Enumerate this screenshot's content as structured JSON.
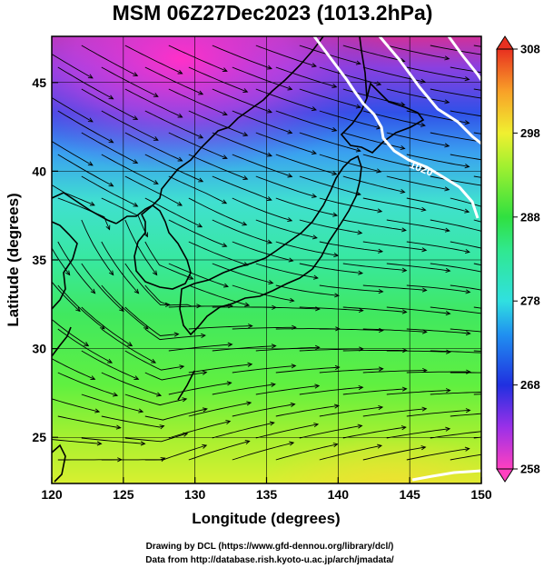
{
  "chart_data": {
    "type": "heatmap",
    "title": "MSM 06Z27Dec2023 (1013.2hPa)",
    "xlabel": "Longitude (degrees)",
    "ylabel": "Latitude  (degrees)",
    "xlim": [
      120,
      150
    ],
    "ylim": [
      22.4,
      47.6
    ],
    "xticks": [
      "120",
      "125",
      "130",
      "135",
      "140",
      "145",
      "150"
    ],
    "yticks": [
      "25",
      "30",
      "35",
      "40",
      "45"
    ],
    "xtick_values": [
      120,
      125,
      130,
      135,
      140,
      145,
      150
    ],
    "ytick_values": [
      25,
      30,
      35,
      40,
      45
    ],
    "colorbar": {
      "ticks": [
        "258",
        "268",
        "278",
        "288",
        "298",
        "308"
      ],
      "tick_values": [
        258,
        268,
        278,
        288,
        298,
        308
      ],
      "range": [
        258,
        308
      ]
    },
    "contour_label": "1020",
    "grid": true,
    "overlay": "streamlines",
    "temperature_field_K": [
      {
        "lat": 47,
        "lon": 122,
        "value": 259
      },
      {
        "lat": 46,
        "lon": 127,
        "value": 258
      },
      {
        "lat": 45,
        "lon": 133,
        "value": 261
      },
      {
        "lat": 44,
        "lon": 139,
        "value": 267
      },
      {
        "lat": 46,
        "lon": 145,
        "value": 269
      },
      {
        "lat": 42,
        "lon": 122,
        "value": 268
      },
      {
        "lat": 42,
        "lon": 130,
        "value": 270
      },
      {
        "lat": 40,
        "lon": 135,
        "value": 280
      },
      {
        "lat": 37,
        "lon": 126,
        "value": 275
      },
      {
        "lat": 36,
        "lon": 139,
        "value": 271
      },
      {
        "lat": 34,
        "lon": 122,
        "value": 282
      },
      {
        "lat": 35,
        "lon": 145,
        "value": 284
      },
      {
        "lat": 31,
        "lon": 130,
        "value": 287
      },
      {
        "lat": 30,
        "lon": 145,
        "value": 289
      },
      {
        "lat": 27,
        "lon": 125,
        "value": 292
      },
      {
        "lat": 25,
        "lon": 140,
        "value": 294
      },
      {
        "lat": 23,
        "lon": 147,
        "value": 298
      }
    ]
  },
  "credits": {
    "line1": "Drawing by DCL (https://www.gfd-dennou.org/library/dcl/)",
    "line2": "Data from http://database.rish.kyoto-u.ac.jp/arch/jmadata/"
  }
}
